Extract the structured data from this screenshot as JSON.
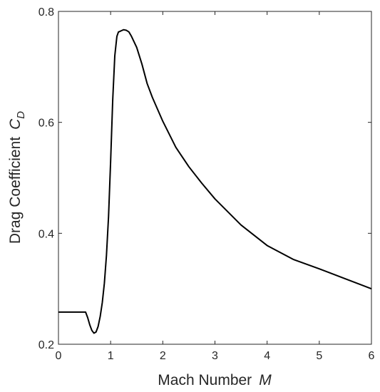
{
  "chart_data": {
    "type": "line",
    "xlabel": {
      "text": "Mach Number",
      "symbol": "M"
    },
    "ylabel": {
      "text": "Drag Coefficient",
      "symbol": "C",
      "subscript": "D"
    },
    "xlim": [
      0,
      6
    ],
    "ylim": [
      0.2,
      0.8
    ],
    "xticks": [
      "0",
      "1",
      "2",
      "3",
      "4",
      "5",
      "6"
    ],
    "yticks": [
      "0.2",
      "0.4",
      "0.6",
      "0.8"
    ],
    "grid": false,
    "series": [
      {
        "color": "#000000",
        "x": [
          0,
          0.2,
          0.4,
          0.52,
          0.56,
          0.6,
          0.64,
          0.68,
          0.72,
          0.76,
          0.8,
          0.84,
          0.88,
          0.92,
          0.96,
          1.0,
          1.04,
          1.08,
          1.12,
          1.15,
          1.18,
          1.2,
          1.25,
          1.3,
          1.35,
          1.4,
          1.5,
          1.6,
          1.7,
          1.8,
          2.0,
          2.25,
          2.5,
          2.75,
          3.0,
          3.5,
          4.0,
          4.5,
          5.0,
          5.5,
          6.0
        ],
        "y": [
          0.258,
          0.258,
          0.258,
          0.258,
          0.248,
          0.235,
          0.225,
          0.22,
          0.222,
          0.232,
          0.25,
          0.275,
          0.31,
          0.36,
          0.43,
          0.53,
          0.64,
          0.72,
          0.755,
          0.763,
          0.764,
          0.765,
          0.767,
          0.766,
          0.763,
          0.755,
          0.735,
          0.705,
          0.67,
          0.645,
          0.602,
          0.555,
          0.52,
          0.49,
          0.462,
          0.415,
          0.378,
          0.353,
          0.336,
          0.318,
          0.3
        ]
      }
    ]
  }
}
